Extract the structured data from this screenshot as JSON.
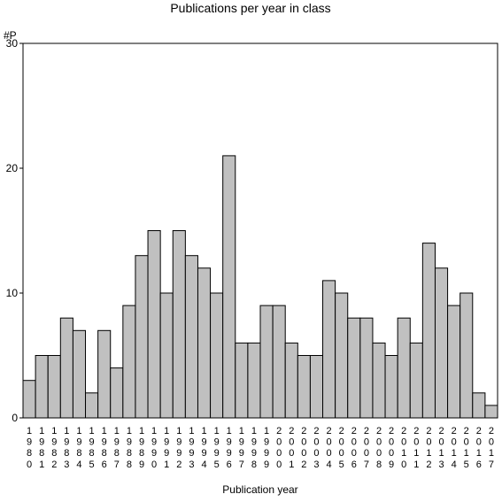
{
  "chart_data": {
    "type": "bar",
    "title": "Publications per year in class",
    "xlabel": "Publication year",
    "ylabel": "#P",
    "ylim": [
      0,
      30
    ],
    "yticks": [
      "0",
      "10",
      "20",
      "30"
    ],
    "grid": false,
    "bar_color": "#c0c0c0",
    "categories": [
      "1980",
      "1981",
      "1982",
      "1983",
      "1984",
      "1985",
      "1986",
      "1987",
      "1988",
      "1989",
      "1990",
      "1991",
      "1992",
      "1993",
      "1994",
      "1995",
      "1996",
      "1997",
      "1998",
      "1999",
      "2000",
      "2001",
      "2002",
      "2003",
      "2004",
      "2005",
      "2006",
      "2007",
      "2008",
      "2009",
      "2010",
      "2011",
      "2012",
      "2013",
      "2014",
      "2015",
      "2016",
      "2017"
    ],
    "values": [
      3,
      5,
      5,
      8,
      7,
      2,
      7,
      4,
      9,
      13,
      15,
      10,
      15,
      13,
      12,
      10,
      21,
      6,
      6,
      9,
      9,
      6,
      5,
      5,
      11,
      10,
      8,
      8,
      6,
      5,
      8,
      6,
      14,
      12,
      9,
      10,
      2,
      1
    ]
  }
}
